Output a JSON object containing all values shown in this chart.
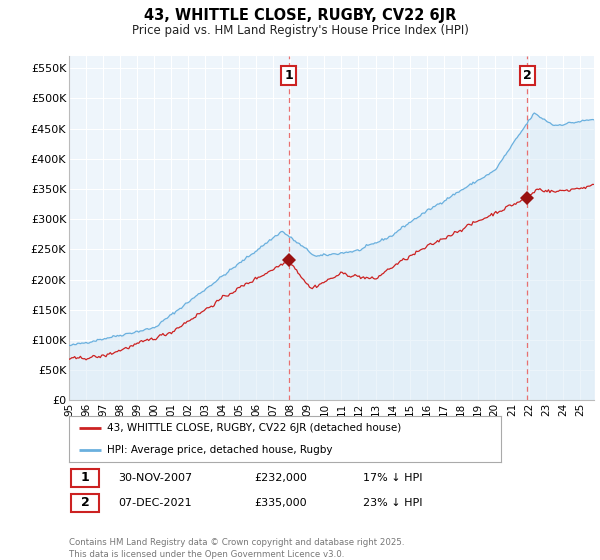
{
  "title": "43, WHITTLE CLOSE, RUGBY, CV22 6JR",
  "subtitle": "Price paid vs. HM Land Registry's House Price Index (HPI)",
  "ylabel_ticks": [
    "£0",
    "£50K",
    "£100K",
    "£150K",
    "£200K",
    "£250K",
    "£300K",
    "£350K",
    "£400K",
    "£450K",
    "£500K",
    "£550K"
  ],
  "ytick_values": [
    0,
    50000,
    100000,
    150000,
    200000,
    250000,
    300000,
    350000,
    400000,
    450000,
    500000,
    550000
  ],
  "ylim": [
    0,
    570000
  ],
  "xlim_start": 1995.0,
  "xlim_end": 2025.83,
  "hpi_color": "#6ab0de",
  "hpi_fill_color": "#daeaf7",
  "sale_color": "#cc2222",
  "sale1_x": 2007.917,
  "sale1_y": 232000,
  "sale2_x": 2021.917,
  "sale2_y": 335000,
  "vline_color": "#e87070",
  "marker_color": "#991111",
  "legend_sale_label": "43, WHITTLE CLOSE, RUGBY, CV22 6JR (detached house)",
  "legend_hpi_label": "HPI: Average price, detached house, Rugby",
  "annotation1_num": "1",
  "annotation1_date": "30-NOV-2007",
  "annotation1_price": "£232,000",
  "annotation1_hpi": "17% ↓ HPI",
  "annotation2_num": "2",
  "annotation2_date": "07-DEC-2021",
  "annotation2_price": "£335,000",
  "annotation2_hpi": "23% ↓ HPI",
  "footer": "Contains HM Land Registry data © Crown copyright and database right 2025.\nThis data is licensed under the Open Government Licence v3.0.",
  "background_color": "#ffffff",
  "plot_bg_color": "#eef5fb",
  "grid_color": "#ffffff"
}
